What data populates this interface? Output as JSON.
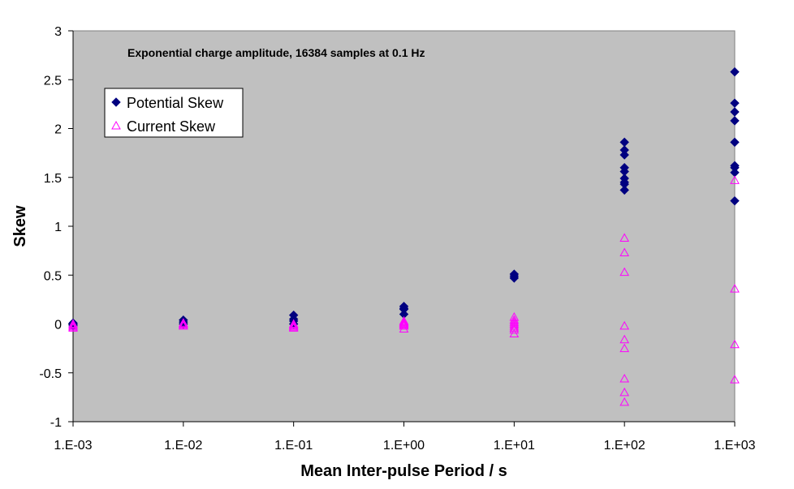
{
  "chart_data": {
    "type": "scatter",
    "title": "Exponential charge amplitude, 16384 samples at 0.1 Hz",
    "xlabel": "Mean Inter-pulse Period / s",
    "ylabel": "Skew",
    "x_scale": "log",
    "xlim": [
      0.001,
      1000
    ],
    "ylim": [
      -1,
      3
    ],
    "x_ticks": [
      0.001,
      0.01,
      0.1,
      1,
      10,
      100,
      1000
    ],
    "x_tick_labels": [
      "1.E-03",
      "1.E-02",
      "1.E-01",
      "1.E+00",
      "1.E+01",
      "1.E+02",
      "1.E+03"
    ],
    "y_ticks": [
      -1,
      -0.5,
      0,
      0.5,
      1,
      1.5,
      2,
      2.5,
      3
    ],
    "y_tick_labels": [
      "-1",
      "-0.5",
      "0",
      "0.5",
      "1",
      "1.5",
      "2",
      "2.5",
      "3"
    ],
    "grid": false,
    "plot_background": "#c0c0c0",
    "legend_position": "top-left",
    "series": [
      {
        "name": "Potential Skew",
        "marker": "diamond",
        "color": "#000080",
        "points": [
          [
            0.001,
            0.01
          ],
          [
            0.001,
            0.0
          ],
          [
            0.001,
            -0.01
          ],
          [
            0.001,
            -0.02
          ],
          [
            0.01,
            0.04
          ],
          [
            0.01,
            0.02
          ],
          [
            0.01,
            0.0
          ],
          [
            0.1,
            0.09
          ],
          [
            0.1,
            0.05
          ],
          [
            0.1,
            0.03
          ],
          [
            0.1,
            0.0
          ],
          [
            1,
            0.18
          ],
          [
            1,
            0.16
          ],
          [
            1,
            0.15
          ],
          [
            1,
            0.1
          ],
          [
            10,
            0.51
          ],
          [
            10,
            0.49
          ],
          [
            10,
            0.47
          ],
          [
            100,
            1.86
          ],
          [
            100,
            1.78
          ],
          [
            100,
            1.73
          ],
          [
            100,
            1.6
          ],
          [
            100,
            1.56
          ],
          [
            100,
            1.49
          ],
          [
            100,
            1.45
          ],
          [
            100,
            1.43
          ],
          [
            100,
            1.37
          ],
          [
            1000,
            2.58
          ],
          [
            1000,
            2.26
          ],
          [
            1000,
            2.17
          ],
          [
            1000,
            2.08
          ],
          [
            1000,
            1.86
          ],
          [
            1000,
            1.62
          ],
          [
            1000,
            1.6
          ],
          [
            1000,
            1.55
          ],
          [
            1000,
            1.26
          ]
        ]
      },
      {
        "name": "Current Skew",
        "marker": "triangle",
        "color": "#ff00ff",
        "points": [
          [
            0.001,
            0.0
          ],
          [
            0.001,
            -0.01
          ],
          [
            0.001,
            -0.02
          ],
          [
            0.001,
            -0.03
          ],
          [
            0.001,
            -0.04
          ],
          [
            0.01,
            0.01
          ],
          [
            0.01,
            0.0
          ],
          [
            0.01,
            -0.01
          ],
          [
            0.01,
            -0.02
          ],
          [
            0.1,
            0.0
          ],
          [
            0.1,
            -0.01
          ],
          [
            0.1,
            -0.02
          ],
          [
            0.1,
            -0.03
          ],
          [
            0.1,
            -0.04
          ],
          [
            1,
            0.03
          ],
          [
            1,
            0.02
          ],
          [
            1,
            0.01
          ],
          [
            1,
            0.0
          ],
          [
            1,
            -0.01
          ],
          [
            1,
            -0.02
          ],
          [
            1,
            -0.05
          ],
          [
            10,
            0.07
          ],
          [
            10,
            0.04
          ],
          [
            10,
            0.02
          ],
          [
            10,
            0.0
          ],
          [
            10,
            -0.02
          ],
          [
            10,
            -0.04
          ],
          [
            10,
            -0.06
          ],
          [
            10,
            -0.1
          ],
          [
            100,
            0.88
          ],
          [
            100,
            0.73
          ],
          [
            100,
            0.53
          ],
          [
            100,
            -0.02
          ],
          [
            100,
            -0.16
          ],
          [
            100,
            -0.25
          ],
          [
            100,
            -0.56
          ],
          [
            100,
            -0.7
          ],
          [
            100,
            -0.8
          ],
          [
            1000,
            1.47
          ],
          [
            1000,
            0.36
          ],
          [
            1000,
            -0.21
          ],
          [
            1000,
            -0.57
          ]
        ]
      }
    ]
  }
}
